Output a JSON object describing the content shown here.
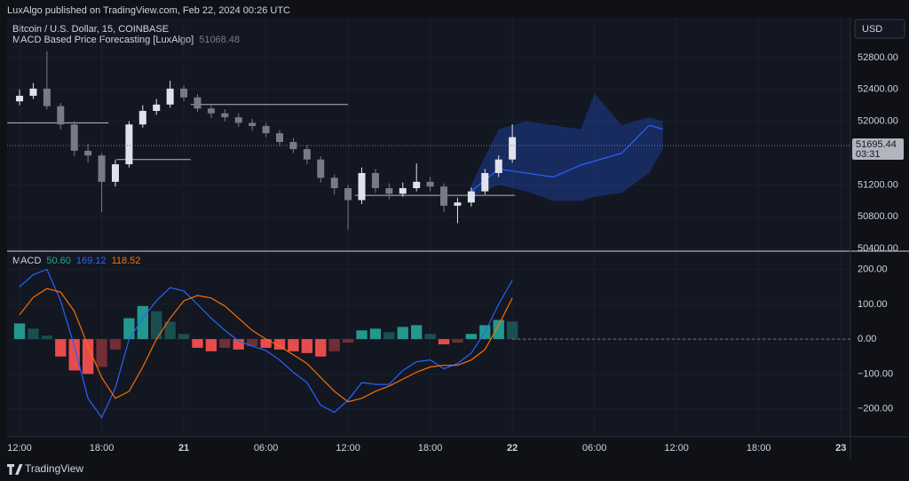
{
  "header": {
    "publisher": "LuxAlgo published on TradingView.com, Feb 22, 2024 00:26 UTC"
  },
  "footer": {
    "brand": "TradingView"
  },
  "chart_data": [
    {
      "type": "candlestick",
      "title": "Bitcoin / U.S. Dollar, 15, COINBASE",
      "indicator": "MACD Based Price Forecasting [LuxAlgo]",
      "indicator_value": 51068.48,
      "currency": "USD",
      "last_price": {
        "value": 51695.44,
        "label": "51695.44"
      },
      "countdown": "03:31",
      "up_color": "#e0e3eb",
      "down_color": "#787b86",
      "xlim": [
        -0.91,
        60.7
      ],
      "ylim": [
        50380,
        53300
      ],
      "yticks": [
        {
          "value": 50400,
          "label": "50400.00"
        },
        {
          "value": 50800,
          "label": "50800.00"
        },
        {
          "value": 51200,
          "label": "51200.00"
        },
        {
          "value": 52000,
          "label": "52000.00"
        },
        {
          "value": 52400,
          "label": "52400.00"
        },
        {
          "value": 52800,
          "label": "52800.00"
        }
      ],
      "x": [
        0,
        1,
        2,
        3,
        4,
        5,
        6,
        7,
        8,
        9,
        10,
        11,
        12,
        13,
        14,
        15,
        16,
        17,
        18,
        19,
        20,
        21,
        22,
        23,
        24,
        25,
        26,
        27,
        28,
        29,
        30,
        31,
        32,
        33,
        34,
        35,
        36
      ],
      "open": [
        52250,
        52320,
        52410,
        52190,
        51960,
        51630,
        51570,
        51240,
        51460,
        51960,
        52130,
        52210,
        52410,
        52300,
        52160,
        52100,
        52050,
        51980,
        51940,
        51850,
        51740,
        51650,
        51520,
        51290,
        51160,
        51010,
        51350,
        51160,
        51090,
        51160,
        51240,
        51180,
        50940,
        50980,
        51120,
        51350,
        51520
      ],
      "high": [
        52400,
        52480,
        52880,
        52230,
        52000,
        51720,
        51600,
        51520,
        52000,
        52200,
        52280,
        52510,
        52450,
        52340,
        52200,
        52150,
        52100,
        52030,
        51980,
        51890,
        51790,
        51700,
        51560,
        51330,
        51200,
        51420,
        51400,
        51220,
        51230,
        51470,
        51300,
        51220,
        51040,
        51170,
        51400,
        51570,
        51960
      ],
      "low": [
        52200,
        52280,
        52150,
        51900,
        51560,
        51480,
        50860,
        51180,
        51420,
        51920,
        52080,
        52170,
        52250,
        52120,
        52040,
        52000,
        51930,
        51880,
        51800,
        51690,
        51600,
        51460,
        51230,
        51080,
        50640,
        50960,
        51100,
        51020,
        51050,
        51120,
        51120,
        50860,
        50720,
        50930,
        51080,
        51300,
        51480
      ],
      "close": [
        52320,
        52410,
        52190,
        51960,
        51630,
        51570,
        51240,
        51460,
        51960,
        52130,
        52210,
        52410,
        52300,
        52160,
        52100,
        52050,
        51980,
        51940,
        51850,
        51740,
        51650,
        51520,
        51290,
        51160,
        51010,
        51350,
        51160,
        51090,
        51160,
        51240,
        51180,
        50940,
        50980,
        51120,
        51350,
        51520,
        51800
      ],
      "levels": [
        {
          "value": 51980,
          "x0": -0.9,
          "x1": 6.5
        },
        {
          "value": 51520,
          "x0": 7.1,
          "x1": 12.5
        },
        {
          "value": 52210,
          "x0": 12.5,
          "x1": 24
        },
        {
          "value": 51070,
          "x0": 24.5,
          "x1": 36.2
        }
      ],
      "forecast": {
        "color": "#2962ff",
        "x": [
          33,
          35,
          37,
          39,
          41,
          42,
          44,
          46,
          47
        ],
        "upper": [
          51200,
          51900,
          52000,
          51950,
          51900,
          52350,
          51950,
          52050,
          52000
        ],
        "mid": [
          51120,
          51400,
          51350,
          51300,
          51450,
          51500,
          51600,
          51950,
          51900
        ],
        "lower": [
          51050,
          51200,
          51120,
          51000,
          51000,
          51050,
          51100,
          51350,
          51650
        ]
      }
    },
    {
      "type": "macd",
      "title": "MACD",
      "xlim": [
        -0.91,
        60.7
      ],
      "ylim": [
        -280,
        250
      ],
      "yticks": [
        {
          "value": -200,
          "label": "−200.00"
        },
        {
          "value": -100,
          "label": "−100.00"
        },
        {
          "value": 0,
          "label": "0.00"
        },
        {
          "value": 100,
          "label": "100.00"
        },
        {
          "value": 200,
          "label": "200.00"
        }
      ],
      "xticks": [
        {
          "value": 0,
          "label": "12:00"
        },
        {
          "value": 6,
          "label": "18:00"
        },
        {
          "value": 12,
          "label": "21"
        },
        {
          "value": 18,
          "label": "06:00"
        },
        {
          "value": 24,
          "label": "12:00"
        },
        {
          "value": 30,
          "label": "18:00"
        },
        {
          "value": 36,
          "label": "22"
        },
        {
          "value": 42,
          "label": "06:00"
        },
        {
          "value": 48,
          "label": "12:00"
        },
        {
          "value": 54,
          "label": "18:00"
        },
        {
          "value": 60,
          "label": "23"
        }
      ],
      "x": [
        0,
        1,
        2,
        3,
        4,
        5,
        6,
        7,
        8,
        9,
        10,
        11,
        12,
        13,
        14,
        15,
        16,
        17,
        18,
        19,
        20,
        21,
        22,
        23,
        24,
        25,
        26,
        27,
        28,
        29,
        30,
        31,
        32,
        33,
        34,
        35,
        36
      ],
      "series": [
        {
          "kind": "histogram",
          "color": "#26a69a",
          "negative_color": "#ff5252",
          "legend_value": "50.60",
          "values": [
            45,
            30,
            10,
            -50,
            -90,
            -100,
            -80,
            -30,
            60,
            95,
            80,
            50,
            15,
            -25,
            -35,
            -25,
            -30,
            -20,
            -25,
            -30,
            -35,
            -40,
            -50,
            -35,
            -10,
            25,
            30,
            20,
            35,
            40,
            15,
            -15,
            -10,
            15,
            40,
            55,
            50.6
          ]
        },
        {
          "kind": "line",
          "color": "#2962ff",
          "legend_value": "169.12",
          "values": [
            150,
            185,
            200,
            110,
            -20,
            -170,
            -225,
            -140,
            0,
            60,
            110,
            148,
            138,
            100,
            60,
            25,
            -5,
            -20,
            -33,
            -60,
            -95,
            -125,
            -190,
            -210,
            -175,
            -125,
            -130,
            -130,
            -90,
            -65,
            -60,
            -85,
            -70,
            -40,
            20,
            100,
            169.12
          ]
        },
        {
          "kind": "line",
          "color": "#ff6d00",
          "legend_value": "118.52",
          "values": [
            70,
            120,
            145,
            135,
            80,
            -20,
            -110,
            -170,
            -150,
            -80,
            0,
            60,
            110,
            125,
            118,
            95,
            60,
            25,
            0,
            -20,
            -45,
            -70,
            -110,
            -150,
            -180,
            -170,
            -150,
            -135,
            -115,
            -95,
            -80,
            -75,
            -75,
            -60,
            -30,
            40,
            118.52
          ]
        }
      ]
    }
  ]
}
